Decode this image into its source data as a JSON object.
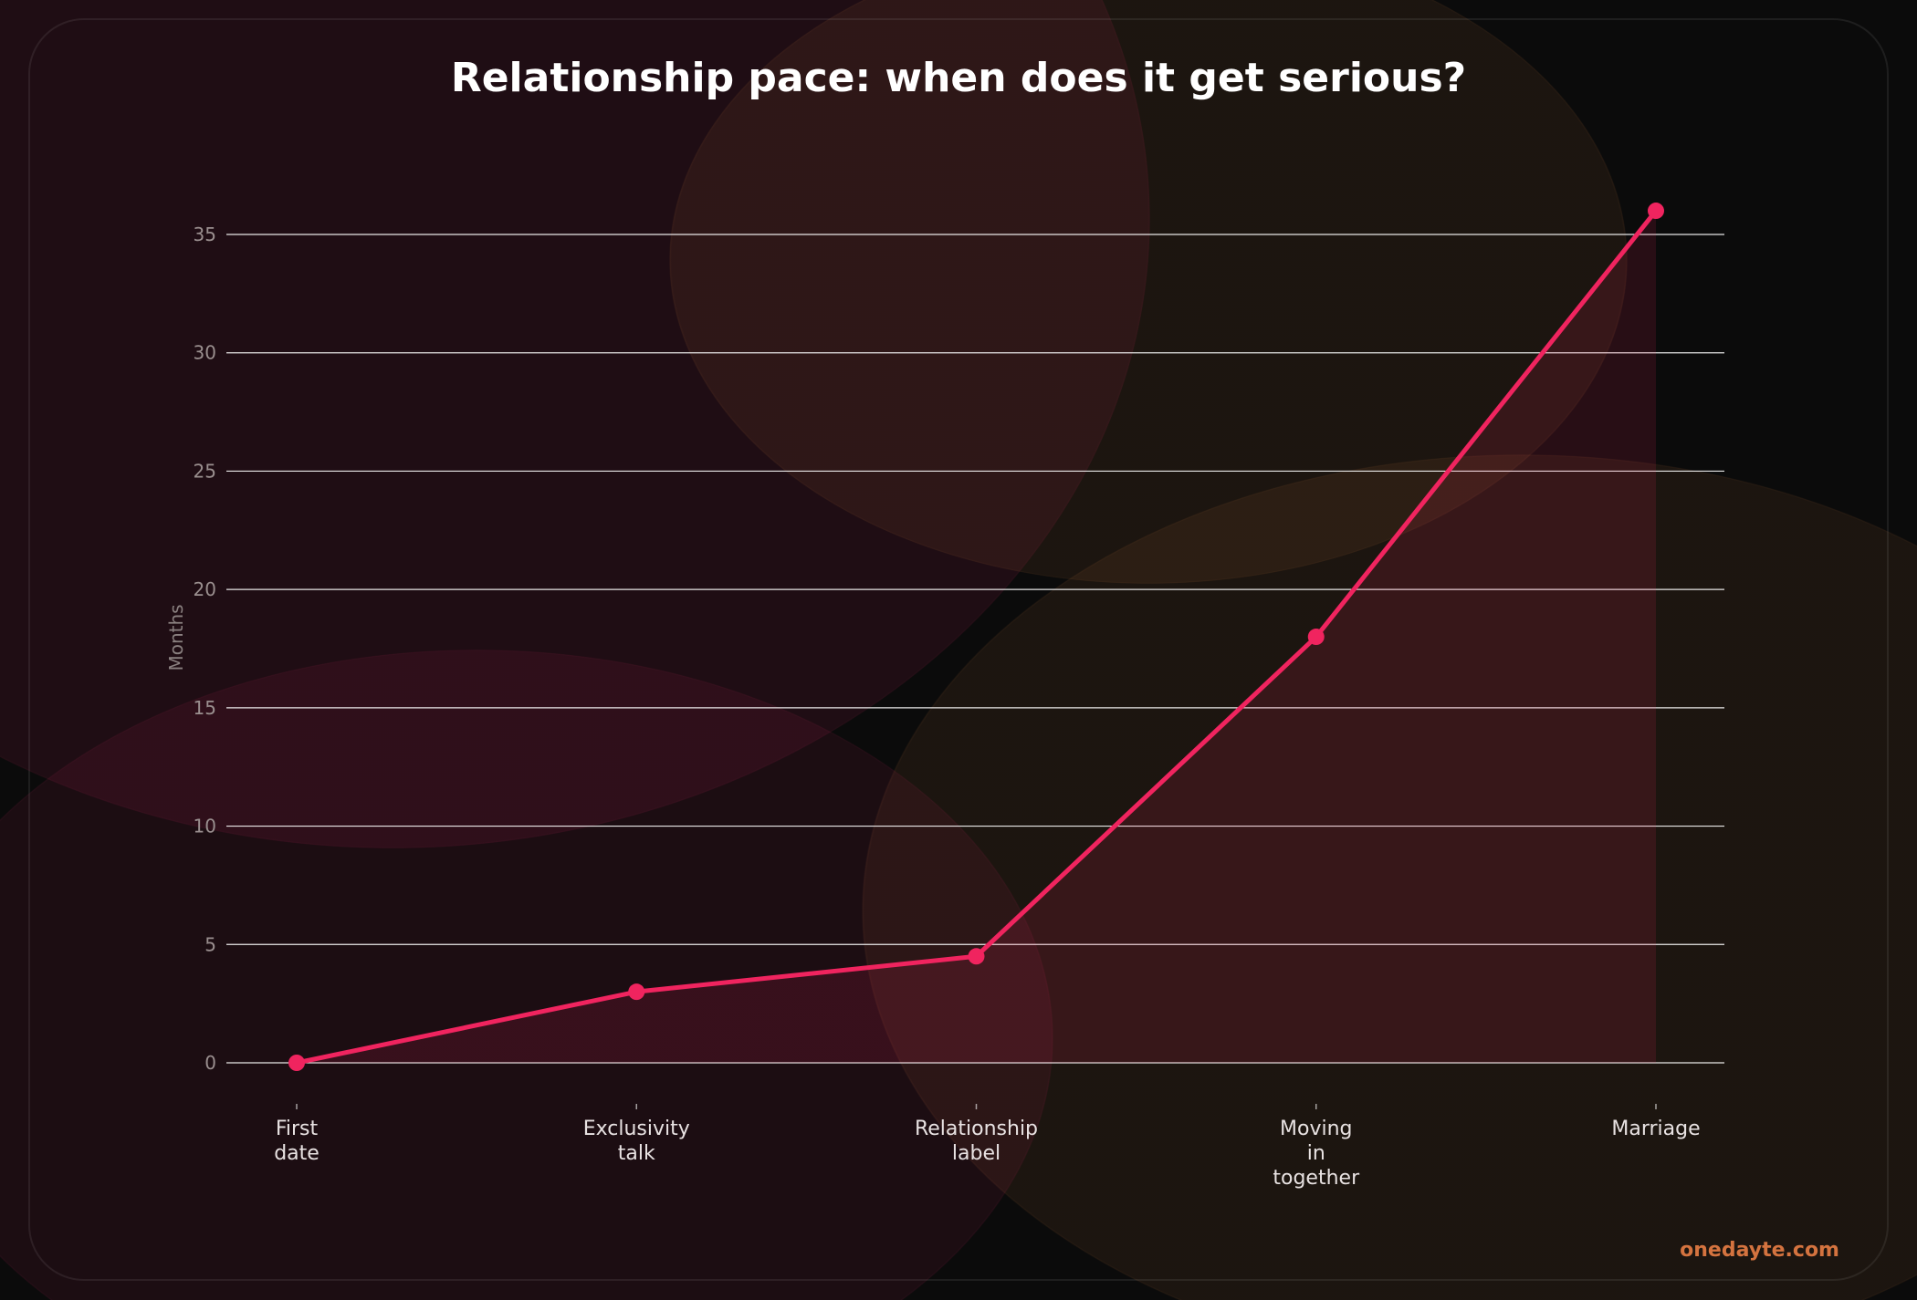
{
  "chart_data": {
    "type": "line",
    "title": "Relationship pace: when does it get serious?",
    "xlabel": "",
    "ylabel": "Months",
    "categories": [
      [
        "First",
        "date"
      ],
      [
        "Exclusivity",
        "talk"
      ],
      [
        "Relationship",
        "label"
      ],
      [
        "Moving",
        "in",
        "together"
      ],
      [
        "Marriage"
      ]
    ],
    "values": [
      0,
      3,
      4.5,
      18,
      36
    ],
    "ylim": [
      -2,
      38
    ],
    "yticks": [
      0,
      5,
      10,
      15,
      20,
      25,
      30,
      35
    ],
    "grid": "horizontal",
    "area_fill": true,
    "colors": {
      "line": "#f0245f",
      "fill": "#f0245f",
      "grid": "#ffffff",
      "background": "#0b0b0b"
    }
  },
  "watermark": {
    "text": "onedayte.com",
    "color": "#d4733f"
  }
}
